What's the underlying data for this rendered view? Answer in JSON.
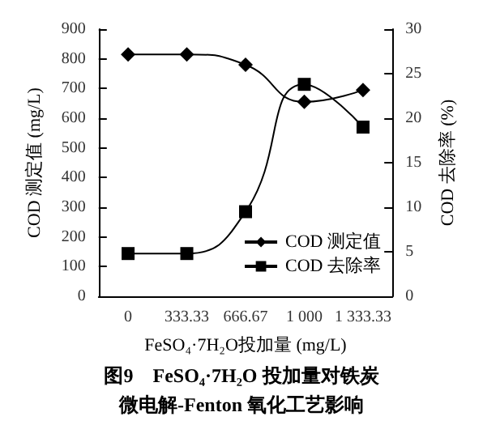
{
  "chart_data": {
    "type": "line",
    "title": "图9　FeSO₄·7H₂O 投加量对铁炭微电解-Fenton 氧化工艺影响",
    "categories": [
      "0",
      "333.33",
      "666.67",
      "1 000",
      "1 333.33"
    ],
    "xlabel": "FeSO₄·7H₂O投加量 (mg/L)",
    "ylabel": "COD 测定值 (mg/L)",
    "y2label": "COD 去除率 (%)",
    "series": [
      {
        "name": "COD 测定值",
        "color": "#000000",
        "marker": "diamond",
        "values": [
          815,
          815,
          780,
          655,
          695
        ]
      },
      {
        "name": "COD 去除率",
        "color": "#000000",
        "marker": "square",
        "axis": "y2",
        "values": [
          4.8,
          4.8,
          9.5,
          23.8,
          19
        ]
      }
    ],
    "ylim": [
      0,
      900
    ],
    "yticks": [
      0,
      100,
      200,
      300,
      400,
      500,
      600,
      700,
      800,
      900
    ],
    "y2lim": [
      0,
      30
    ],
    "y2ticks": [
      0,
      5,
      10,
      15,
      20,
      25,
      30
    ],
    "legend": "bottom right",
    "grid": false
  }
}
